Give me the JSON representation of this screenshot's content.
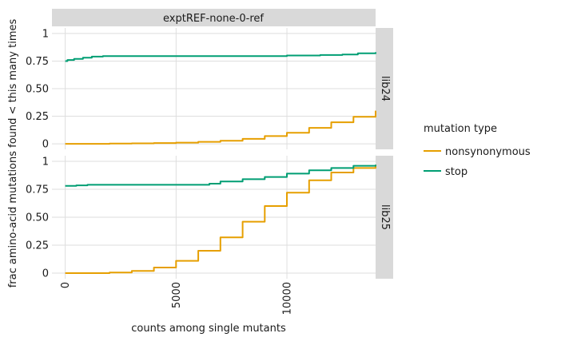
{
  "chart_data": {
    "type": "line",
    "facet_title": "exptREF-none-0-ref",
    "xlabel": "counts among single mutants",
    "ylabel": "frac amino-acid mutations found < this many times",
    "xlim": [
      -600,
      14000
    ],
    "ylim": [
      -0.05,
      1.05
    ],
    "x_ticks": [
      0,
      5000,
      10000
    ],
    "x_tick_labels": [
      "0",
      "5000",
      "10000"
    ],
    "y_ticks": [
      0,
      0.25,
      0.5,
      0.75,
      1
    ],
    "y_tick_labels": [
      "0",
      "0.25",
      "0.50",
      "0.75",
      "1"
    ],
    "grid": true,
    "legend": {
      "title": "mutation type",
      "placement": "right",
      "entries": [
        "nonsynonymous",
        "stop"
      ]
    },
    "colors": {
      "nonsynonymous": "#E69F00",
      "stop": "#009E73",
      "strip": "#d9d9d9",
      "grid": "#dedede"
    },
    "panels": [
      {
        "label": "lib24",
        "series": [
          {
            "name": "nonsynonymous",
            "x": [
              0,
              1000,
              2000,
              3000,
              4000,
              5000,
              6000,
              7000,
              8000,
              9000,
              10000,
              11000,
              12000,
              13000,
              14000
            ],
            "y": [
              0,
              0,
              0.002,
              0.004,
              0.007,
              0.011,
              0.018,
              0.028,
              0.045,
              0.07,
              0.1,
              0.145,
              0.195,
              0.245,
              0.3
            ]
          },
          {
            "name": "stop",
            "x": [
              0,
              100,
              400,
              800,
              1200,
              1700,
              3000,
              6000,
              9500,
              10000,
              11500,
              12500,
              13200,
              14000
            ],
            "y": [
              0.75,
              0.76,
              0.77,
              0.78,
              0.79,
              0.795,
              0.795,
              0.795,
              0.795,
              0.8,
              0.805,
              0.81,
              0.82,
              0.83
            ]
          }
        ]
      },
      {
        "label": "lib25",
        "series": [
          {
            "name": "nonsynonymous",
            "x": [
              0,
              1000,
              2000,
              3000,
              4000,
              5000,
              6000,
              7000,
              8000,
              9000,
              10000,
              11000,
              12000,
              13000,
              14000
            ],
            "y": [
              0,
              0,
              0.005,
              0.02,
              0.05,
              0.11,
              0.2,
              0.32,
              0.46,
              0.6,
              0.72,
              0.83,
              0.9,
              0.94,
              0.97
            ]
          },
          {
            "name": "stop",
            "x": [
              0,
              500,
              1000,
              3000,
              5000,
              6500,
              7000,
              8000,
              9000,
              10000,
              11000,
              12000,
              13000,
              14000
            ],
            "y": [
              0.78,
              0.785,
              0.79,
              0.79,
              0.79,
              0.8,
              0.82,
              0.84,
              0.86,
              0.89,
              0.92,
              0.94,
              0.96,
              0.97
            ]
          }
        ]
      }
    ]
  }
}
